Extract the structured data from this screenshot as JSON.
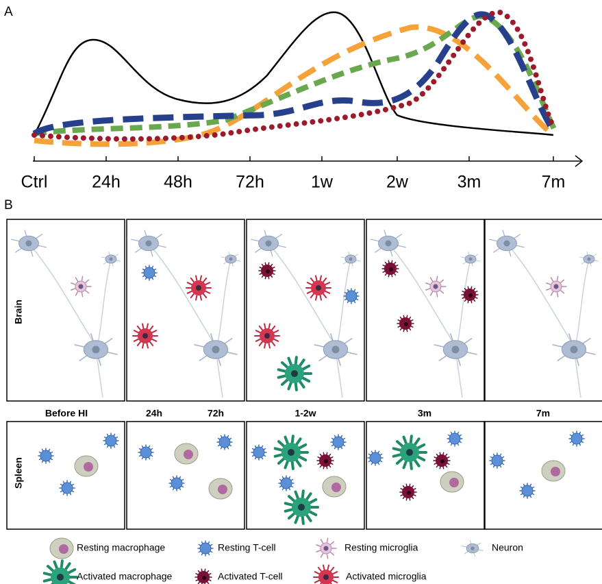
{
  "panel_a": {
    "label": "A",
    "x_axis": [
      "Ctrl",
      "24h",
      "48h",
      "72h",
      "1w",
      "2w",
      "3m",
      "7m"
    ]
  },
  "panel_b": {
    "label": "B",
    "rows": [
      "Brain",
      "Spleen"
    ],
    "time_labels": [
      "Before HI",
      "24h",
      "72h",
      "1-2w",
      "3m",
      "7m"
    ]
  },
  "legend": [
    "Resting macrophage",
    "Resting T-cell",
    "Resting microglia",
    "Neuron",
    "Activated macrophage",
    "Activated T-cell",
    "Activated microglia"
  ]
}
